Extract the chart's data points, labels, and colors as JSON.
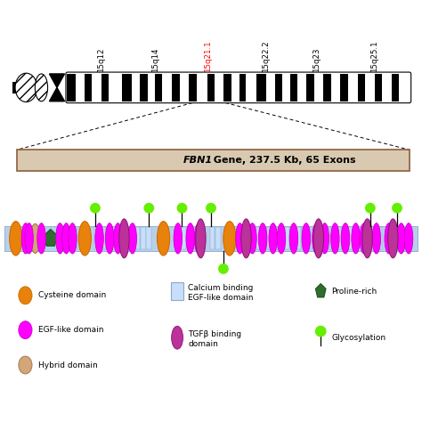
{
  "chromosome_labels": [
    "15q12",
    "15q14",
    "15q21.1",
    "15q22.2",
    "15q23",
    "15q25.1"
  ],
  "chromosome_label_colors": [
    "black",
    "black",
    "red",
    "black",
    "black",
    "black"
  ],
  "gene_bar_text_italic": "FBN1",
  "gene_bar_text_normal": " Gene, 237.5 Kb, 65 Exons",
  "gene_bar_color": "#d9c9b0",
  "gene_bar_border": "#8B5E3C",
  "background_color": "#ffffff",
  "orange_color": "#E8820A",
  "magenta_color": "#FF00FF",
  "tgfb_color": "#BB3399",
  "green_dark": "#2d6e2d",
  "green_light": "#66EE00",
  "tan_color": "#D2A679",
  "egf_box_color": "#C8DEFA",
  "egf_box_edge": "#8AAAC8"
}
